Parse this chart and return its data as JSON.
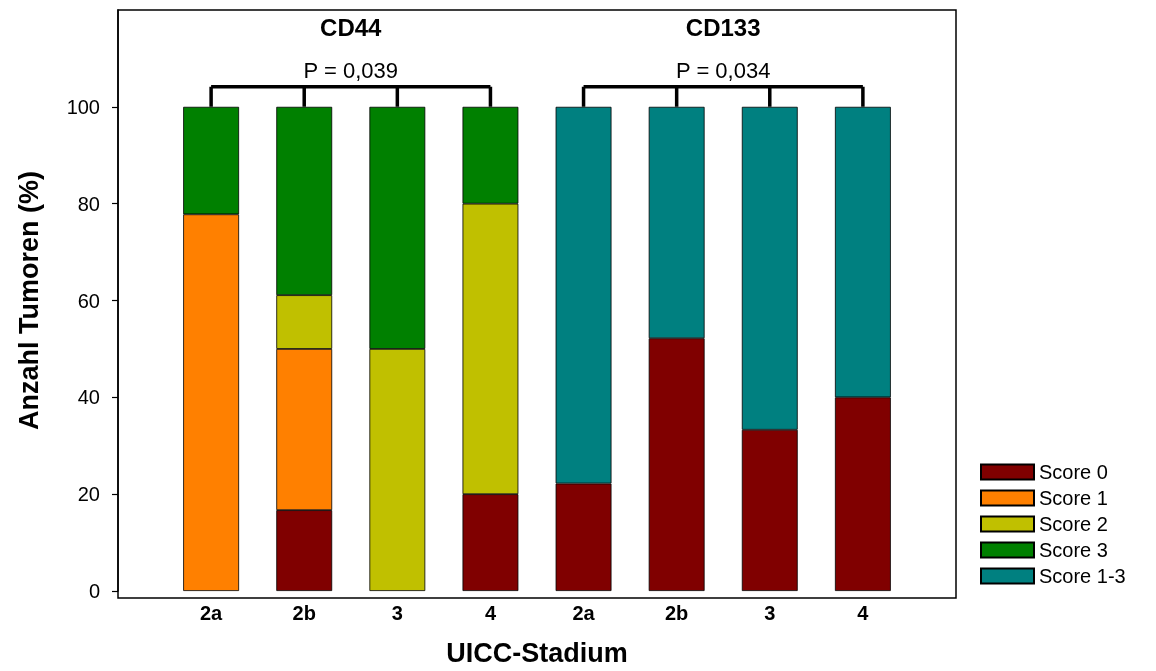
{
  "chart_data": {
    "type": "bar",
    "xlabel": "UICC-Stadium",
    "ylabel": "Anzahl Tumoren (%)",
    "categories": [
      "2a",
      "2b",
      "3",
      "4",
      "2a",
      "2b",
      "3",
      "4"
    ],
    "stacked": true,
    "series": [
      {
        "name": "Score 0",
        "color": "#800000",
        "values": [
          null,
          16.7,
          null,
          20,
          22.2,
          52.2,
          33.3,
          40
        ]
      },
      {
        "name": "Score 1",
        "color": "#ff8000",
        "values": [
          77.8,
          33.3,
          null,
          null,
          null,
          null,
          null,
          null
        ]
      },
      {
        "name": "Score 2",
        "color": "#c0c000",
        "values": [
          null,
          11.1,
          50,
          60,
          null,
          null,
          null,
          null
        ]
      },
      {
        "name": "Score 3",
        "color": "#008000",
        "values": [
          22.2,
          38.9,
          50,
          20,
          null,
          null,
          null,
          null
        ]
      },
      {
        "name": "Score 1-3",
        "color": "#008080",
        "values": [
          null,
          null,
          null,
          null,
          77.8,
          47.8,
          66.7,
          60
        ]
      }
    ],
    "ylim": [
      0,
      120
    ],
    "yticks": [
      0,
      20,
      40,
      60,
      80,
      100
    ],
    "legend": "bottom right",
    "annotations": [
      "CD44",
      "P = 0,039",
      "CD133",
      "P = 0,034"
    ]
  }
}
